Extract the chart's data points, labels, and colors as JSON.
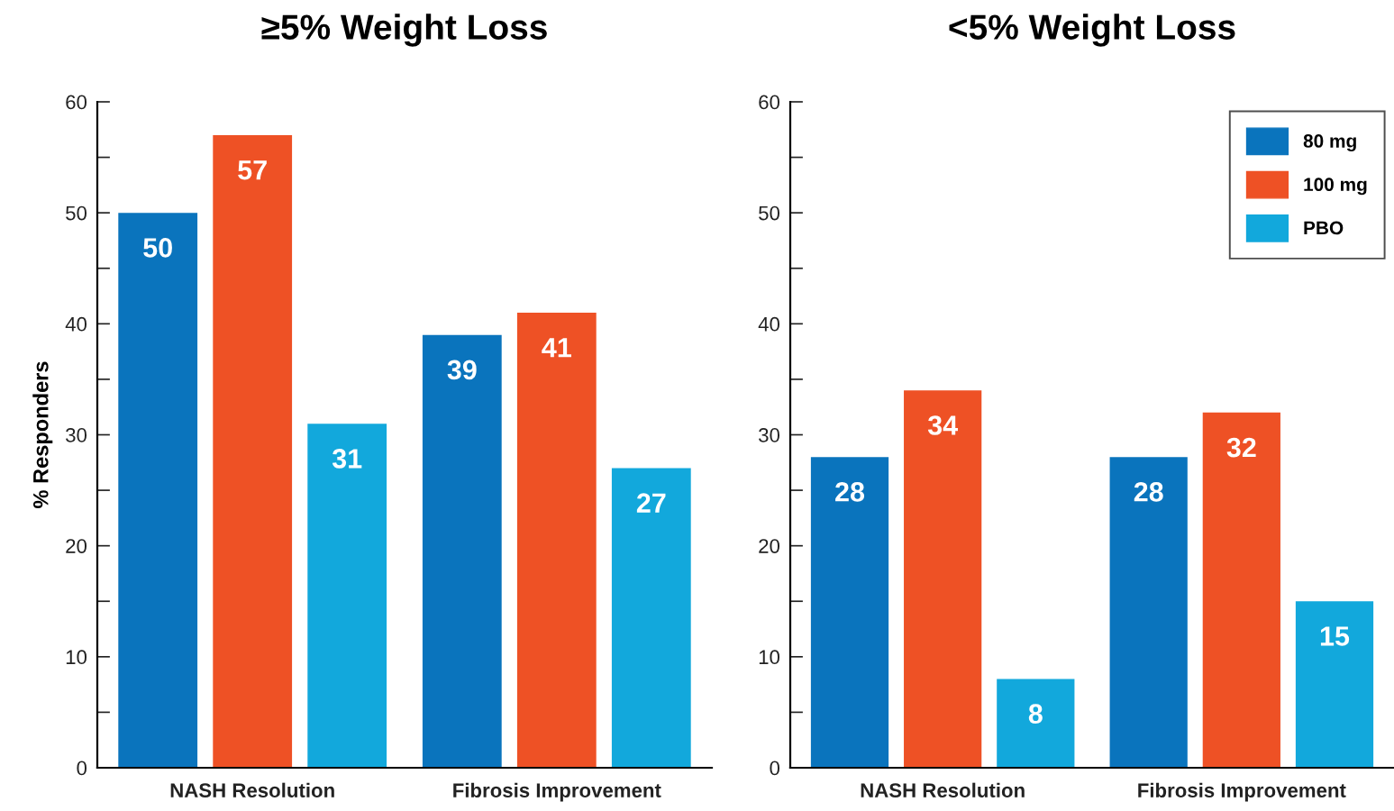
{
  "chart_data": [
    {
      "type": "bar",
      "title": "≥5% Weight Loss",
      "ylabel": "% Responders",
      "categories": [
        "NASH Resolution",
        "Fibrosis Improvement"
      ],
      "series": [
        {
          "color": "#0a74bd",
          "values": [
            50,
            39
          ]
        },
        {
          "color": "#ee5125",
          "values": [
            57,
            41
          ]
        },
        {
          "color": "#12a8dc",
          "values": [
            31,
            27
          ]
        }
      ],
      "data_labels": true,
      "ylim": [
        0,
        60
      ],
      "yticks": [
        0,
        {
          "value": 5,
          "label": null
        },
        10,
        {
          "value": 15,
          "label": null
        },
        20,
        {
          "value": 25,
          "label": null
        },
        30,
        {
          "value": 35,
          "label": null
        },
        40,
        {
          "value": 45,
          "label": null
        },
        50,
        {
          "value": 55,
          "label": null
        },
        60
      ],
      "grid": false,
      "legend": false
    },
    {
      "type": "bar",
      "title": "<5% Weight Loss",
      "categories": [
        "NASH Resolution",
        "Fibrosis Improvement"
      ],
      "series": [
        {
          "name": "80 mg",
          "color": "#0a74bd",
          "values": [
            28,
            28
          ]
        },
        {
          "name": "100 mg",
          "color": "#ee5125",
          "values": [
            34,
            32
          ]
        },
        {
          "name": "PBO",
          "color": "#12a8dc",
          "values": [
            8,
            15
          ]
        }
      ],
      "data_labels": true,
      "ylim": [
        0,
        60
      ],
      "yticks": [
        0,
        {
          "value": 5,
          "label": null
        },
        10,
        {
          "value": 15,
          "label": null
        },
        20,
        {
          "value": 25,
          "label": null
        },
        30,
        {
          "value": 35,
          "label": null
        },
        40,
        {
          "value": 45,
          "label": null
        },
        50,
        {
          "value": 55,
          "label": null
        },
        60
      ],
      "grid": false,
      "legend": "top right"
    }
  ]
}
